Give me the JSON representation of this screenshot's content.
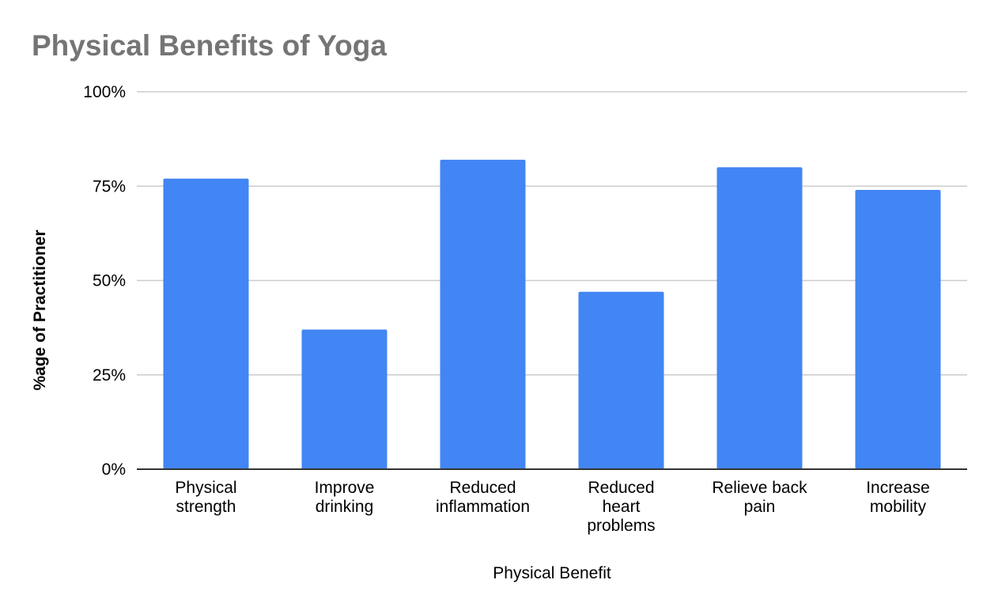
{
  "chart_data": {
    "type": "bar",
    "title": "Physical Benefits of Yoga",
    "xlabel": "Physical Benefit",
    "ylabel": "%age of Practitioner",
    "categories": [
      [
        "Physical",
        "strength"
      ],
      [
        "Improve",
        "drinking"
      ],
      [
        "Reduced",
        "inflammation"
      ],
      [
        "Reduced",
        "heart",
        "problems"
      ],
      [
        "Relieve back",
        "pain"
      ],
      [
        "Increase",
        "mobility"
      ]
    ],
    "values": [
      77,
      37,
      82,
      47,
      80,
      74
    ],
    "ylim": [
      0,
      100
    ],
    "yticks": [
      0,
      25,
      50,
      75,
      100
    ],
    "ytick_labels": [
      "0%",
      "25%",
      "50%",
      "75%",
      "100%"
    ],
    "grid": true,
    "legend": "none"
  },
  "colors": {
    "bar": "#4285f4",
    "title": "#757575",
    "text": "#000000",
    "grid": "#cccccc",
    "axis": "#333333"
  }
}
